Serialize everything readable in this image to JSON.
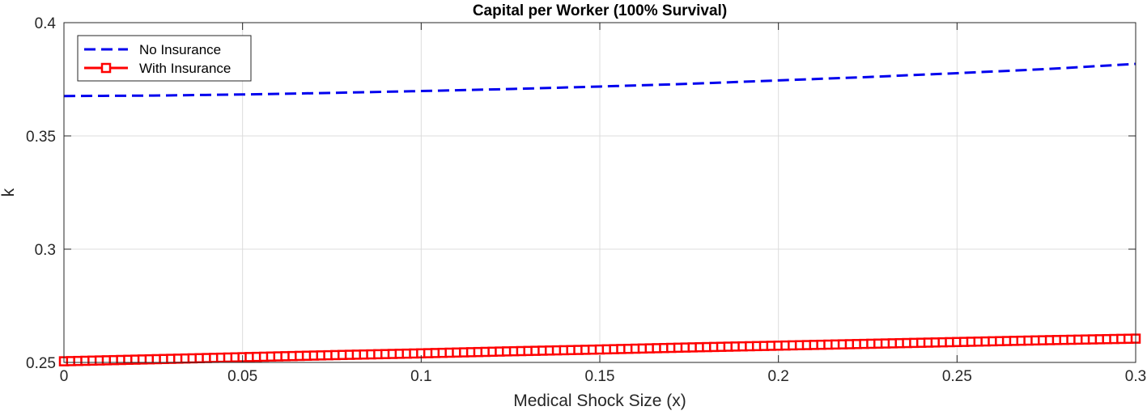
{
  "chart_data": {
    "type": "line",
    "title": "Capital per Worker (100% Survival)",
    "xlabel": "Medical Shock Size (x)",
    "ylabel": "k",
    "xlim": [
      0,
      0.3
    ],
    "ylim": [
      0.25,
      0.4
    ],
    "xticks": [
      0,
      0.05,
      0.1,
      0.15,
      0.2,
      0.25,
      0.3
    ],
    "xtick_labels": [
      "0",
      "0.05",
      "0.1",
      "0.15",
      "0.2",
      "0.25",
      "0.3"
    ],
    "yticks": [
      0.25,
      0.3,
      0.35,
      0.4
    ],
    "ytick_labels": [
      "0.25",
      "0.3",
      "0.35",
      "0.4"
    ],
    "grid": true,
    "legend_position": "top-left",
    "series": [
      {
        "name": "No Insurance",
        "color": "#0000ee",
        "style": "dashed",
        "x": [
          0,
          0.025,
          0.05,
          0.075,
          0.1,
          0.125,
          0.15,
          0.175,
          0.2,
          0.225,
          0.25,
          0.275,
          0.3
        ],
        "y": [
          0.3676,
          0.3678,
          0.3683,
          0.369,
          0.3698,
          0.3707,
          0.3718,
          0.373,
          0.3745,
          0.376,
          0.3777,
          0.3795,
          0.3818
        ]
      },
      {
        "name": "With Insurance",
        "color": "#ff0000",
        "style": "solid-square-markers",
        "x": [
          0,
          0.025,
          0.05,
          0.075,
          0.1,
          0.125,
          0.15,
          0.175,
          0.2,
          0.225,
          0.25,
          0.275,
          0.3
        ],
        "y": [
          0.2505,
          0.2514,
          0.2523,
          0.2532,
          0.254,
          0.2549,
          0.2557,
          0.2566,
          0.2574,
          0.2582,
          0.259,
          0.2598,
          0.2605
        ]
      }
    ]
  }
}
